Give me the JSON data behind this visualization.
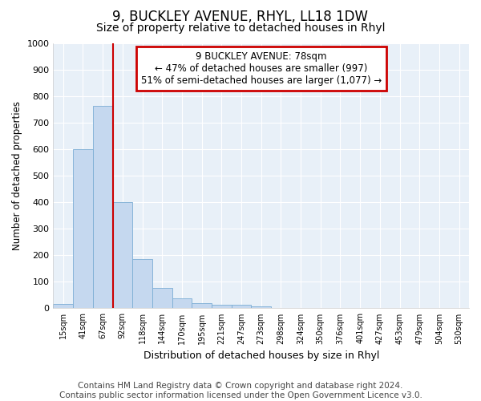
{
  "title": "9, BUCKLEY AVENUE, RHYL, LL18 1DW",
  "subtitle": "Size of property relative to detached houses in Rhyl",
  "xlabel": "Distribution of detached houses by size in Rhyl",
  "ylabel": "Number of detached properties",
  "bar_labels": [
    "15sqm",
    "41sqm",
    "67sqm",
    "92sqm",
    "118sqm",
    "144sqm",
    "170sqm",
    "195sqm",
    "221sqm",
    "247sqm",
    "273sqm",
    "298sqm",
    "324sqm",
    "350sqm",
    "376sqm",
    "401sqm",
    "427sqm",
    "453sqm",
    "479sqm",
    "504sqm",
    "530sqm"
  ],
  "bar_values": [
    15,
    600,
    765,
    400,
    185,
    78,
    38,
    18,
    13,
    13,
    8,
    0,
    0,
    0,
    0,
    0,
    0,
    0,
    0,
    0,
    0
  ],
  "bar_color": "#c5d8ef",
  "bar_edge_color": "#7badd4",
  "redline_x": 2.5,
  "ylim": [
    0,
    1000
  ],
  "yticks": [
    0,
    100,
    200,
    300,
    400,
    500,
    600,
    700,
    800,
    900,
    1000
  ],
  "annotation_title": "9 BUCKLEY AVENUE: 78sqm",
  "annotation_line1": "← 47% of detached houses are smaller (997)",
  "annotation_line2": "51% of semi-detached houses are larger (1,077) →",
  "annotation_box_color": "#cc0000",
  "footer1": "Contains HM Land Registry data © Crown copyright and database right 2024.",
  "footer2": "Contains public sector information licensed under the Open Government Licence v3.0.",
  "bg_color": "#ffffff",
  "plot_bg_color": "#e8f0f8",
  "grid_color": "#ffffff",
  "title_fontsize": 12,
  "subtitle_fontsize": 10,
  "footer_fontsize": 7.5,
  "ann_fontsize": 8.5
}
